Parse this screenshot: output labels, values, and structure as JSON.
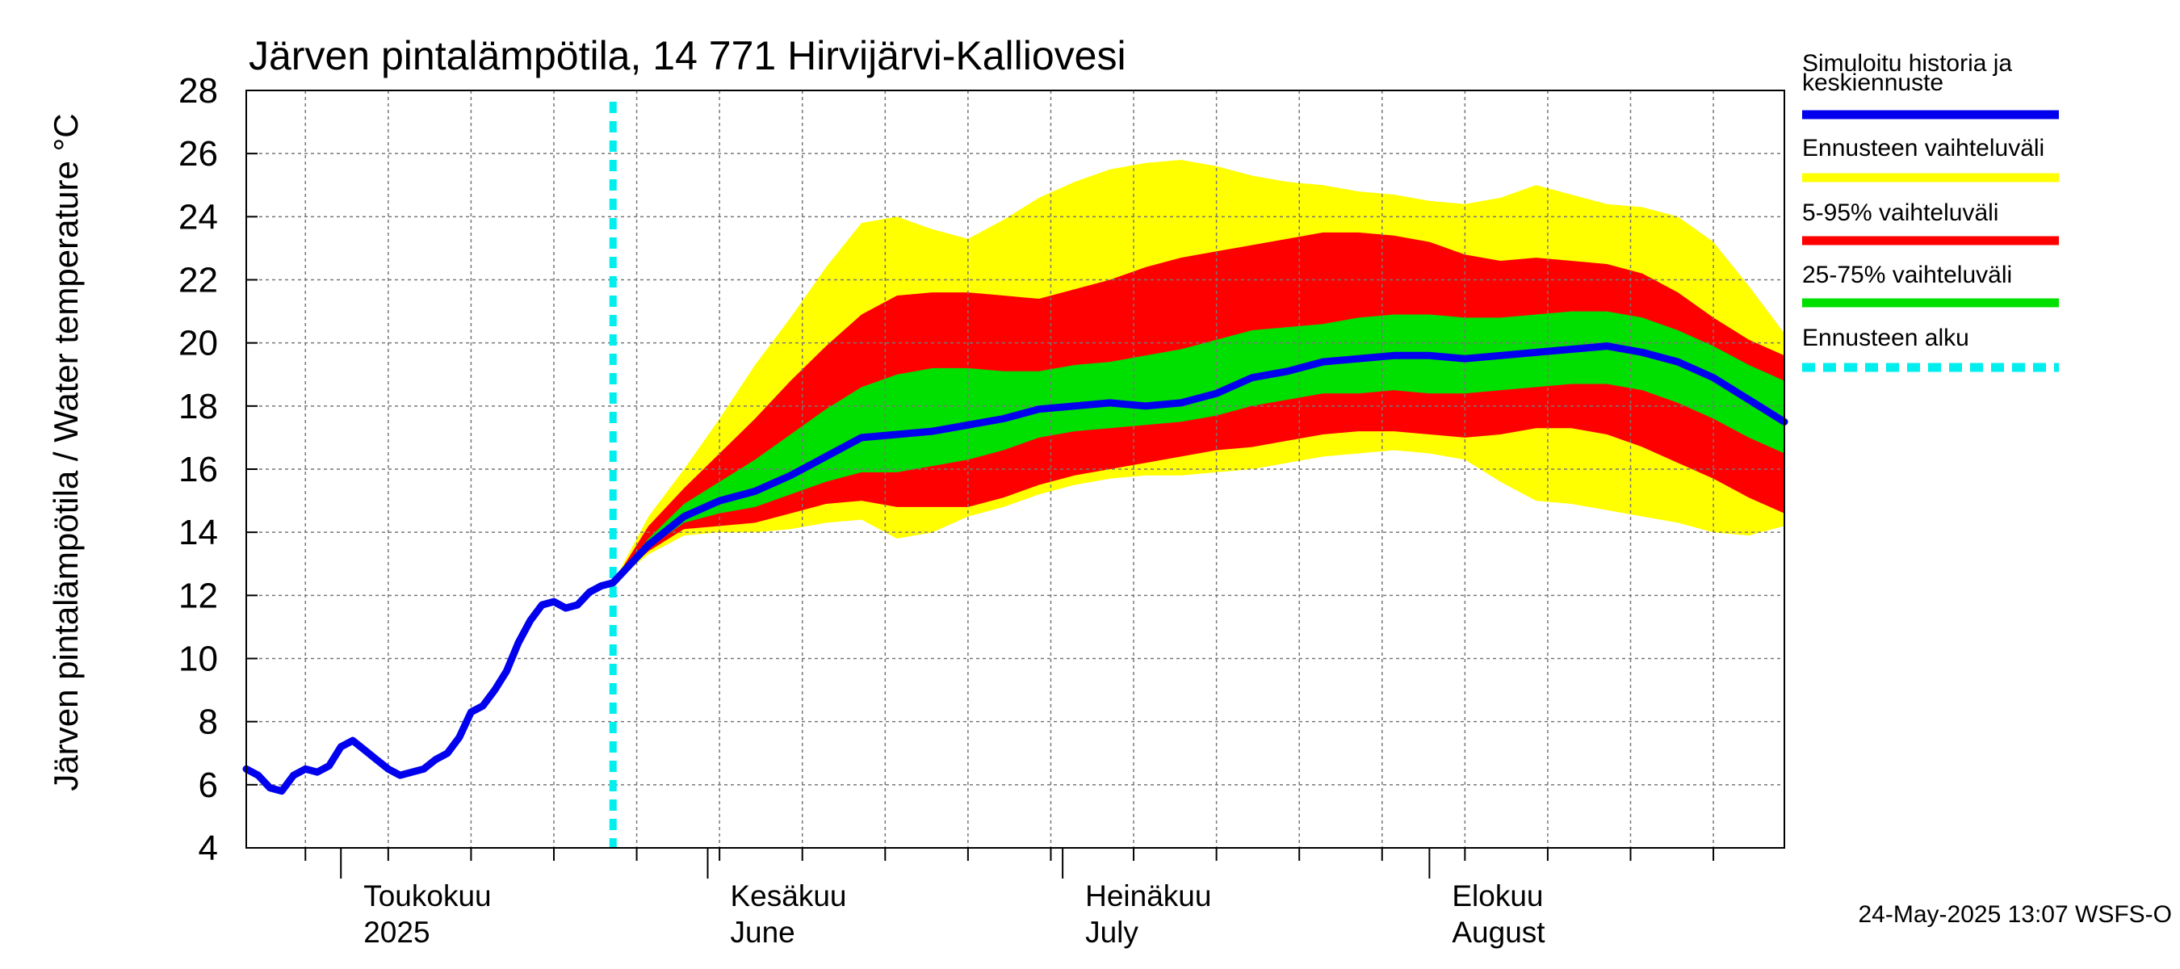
{
  "chart_data": {
    "type": "area",
    "title": "Järven pintalämpötila, 14 771 Hirvijärvi-Kalliovesi",
    "ylabel": "Järven pintalämpötila / Water temperature °C",
    "ylim": [
      4,
      28
    ],
    "yticks": [
      "4",
      "6",
      "8",
      "10",
      "12",
      "14",
      "16",
      "18",
      "20",
      "22",
      "24",
      "26",
      "28"
    ],
    "xlim": [
      "2025-04-23",
      "2025-08-31"
    ],
    "grid": true,
    "months": [
      {
        "date": "2025-05-01",
        "line1": "Toukokuu",
        "line2": "2025"
      },
      {
        "date": "2025-06-01",
        "line1": "Kesäkuu",
        "line2": "June"
      },
      {
        "date": "2025-07-01",
        "line1": "Heinäkuu",
        "line2": "July"
      },
      {
        "date": "2025-08-01",
        "line1": "Elokuu",
        "line2": "August"
      }
    ],
    "forecast_start": "2025-05-24",
    "colors": {
      "history": "#0000ee",
      "range_full": "#ffff00",
      "range_5_95": "#ff0000",
      "range_25_75": "#00e000",
      "forecast_start": "#00eeee"
    },
    "history": {
      "x": [
        "2025-04-23",
        "2025-04-24",
        "2025-04-25",
        "2025-04-26",
        "2025-04-27",
        "2025-04-28",
        "2025-04-29",
        "2025-04-30",
        "2025-05-01",
        "2025-05-02",
        "2025-05-03",
        "2025-05-04",
        "2025-05-05",
        "2025-05-06",
        "2025-05-07",
        "2025-05-08",
        "2025-05-09",
        "2025-05-10",
        "2025-05-11",
        "2025-05-12",
        "2025-05-13",
        "2025-05-14",
        "2025-05-15",
        "2025-05-16",
        "2025-05-17",
        "2025-05-18",
        "2025-05-19",
        "2025-05-20",
        "2025-05-21",
        "2025-05-22",
        "2025-05-23",
        "2025-05-24"
      ],
      "y": [
        6.5,
        6.3,
        5.9,
        5.8,
        6.3,
        6.5,
        6.4,
        6.6,
        7.2,
        7.4,
        7.1,
        6.8,
        6.5,
        6.3,
        6.4,
        6.5,
        6.8,
        7.0,
        7.5,
        8.3,
        8.5,
        9.0,
        9.6,
        10.5,
        11.2,
        11.7,
        11.8,
        11.6,
        11.7,
        12.1,
        12.3,
        12.4
      ]
    },
    "forecast": {
      "x": [
        "2025-05-24",
        "2025-05-27",
        "2025-05-30",
        "2025-06-02",
        "2025-06-05",
        "2025-06-08",
        "2025-06-11",
        "2025-06-14",
        "2025-06-17",
        "2025-06-20",
        "2025-06-23",
        "2025-06-26",
        "2025-06-29",
        "2025-07-02",
        "2025-07-05",
        "2025-07-08",
        "2025-07-11",
        "2025-07-14",
        "2025-07-17",
        "2025-07-20",
        "2025-07-23",
        "2025-07-26",
        "2025-07-29",
        "2025-08-01",
        "2025-08-04",
        "2025-08-07",
        "2025-08-10",
        "2025-08-13",
        "2025-08-16",
        "2025-08-19",
        "2025-08-22",
        "2025-08-25",
        "2025-08-28",
        "2025-08-31"
      ],
      "median": [
        12.4,
        13.6,
        14.5,
        15.0,
        15.3,
        15.8,
        16.4,
        17.0,
        17.1,
        17.2,
        17.4,
        17.6,
        17.9,
        18.0,
        18.1,
        18.0,
        18.1,
        18.4,
        18.9,
        19.1,
        19.4,
        19.5,
        19.6,
        19.6,
        19.5,
        19.6,
        19.7,
        19.8,
        19.9,
        19.7,
        19.4,
        18.9,
        18.2,
        17.5
      ],
      "p25": [
        12.4,
        13.5,
        14.3,
        14.6,
        14.8,
        15.2,
        15.6,
        15.9,
        15.9,
        16.1,
        16.3,
        16.6,
        17.0,
        17.2,
        17.3,
        17.4,
        17.5,
        17.7,
        18.0,
        18.2,
        18.4,
        18.4,
        18.5,
        18.4,
        18.4,
        18.5,
        18.6,
        18.7,
        18.7,
        18.5,
        18.1,
        17.6,
        17.0,
        16.5
      ],
      "p75": [
        12.4,
        13.8,
        14.9,
        15.6,
        16.3,
        17.1,
        17.9,
        18.6,
        19.0,
        19.2,
        19.2,
        19.1,
        19.1,
        19.3,
        19.4,
        19.6,
        19.8,
        20.1,
        20.4,
        20.5,
        20.6,
        20.8,
        20.9,
        20.9,
        20.8,
        20.8,
        20.9,
        21.0,
        21.0,
        20.8,
        20.4,
        19.9,
        19.3,
        18.8
      ],
      "p05": [
        12.4,
        13.4,
        14.1,
        14.2,
        14.3,
        14.6,
        14.9,
        15.0,
        14.8,
        14.8,
        14.8,
        15.1,
        15.5,
        15.8,
        16.0,
        16.2,
        16.4,
        16.6,
        16.7,
        16.9,
        17.1,
        17.2,
        17.2,
        17.1,
        17.0,
        17.1,
        17.3,
        17.3,
        17.1,
        16.7,
        16.2,
        15.7,
        15.1,
        14.6
      ],
      "p95": [
        12.4,
        14.2,
        15.4,
        16.5,
        17.6,
        18.8,
        19.9,
        20.9,
        21.5,
        21.6,
        21.6,
        21.5,
        21.4,
        21.7,
        22.0,
        22.4,
        22.7,
        22.9,
        23.1,
        23.3,
        23.5,
        23.5,
        23.4,
        23.2,
        22.8,
        22.6,
        22.7,
        22.6,
        22.5,
        22.2,
        21.6,
        20.8,
        20.1,
        19.6
      ],
      "min": [
        12.4,
        13.3,
        13.9,
        14.0,
        14.0,
        14.1,
        14.3,
        14.4,
        13.8,
        14.0,
        14.5,
        14.8,
        15.2,
        15.5,
        15.7,
        15.8,
        15.8,
        15.9,
        16.0,
        16.2,
        16.4,
        16.5,
        16.6,
        16.5,
        16.3,
        15.6,
        15.0,
        14.9,
        14.7,
        14.5,
        14.3,
        14.0,
        13.9,
        14.2
      ],
      "max": [
        12.4,
        14.5,
        16.0,
        17.6,
        19.3,
        20.8,
        22.4,
        23.8,
        24.0,
        23.6,
        23.3,
        23.9,
        24.6,
        25.1,
        25.5,
        25.7,
        25.8,
        25.6,
        25.3,
        25.1,
        25.0,
        24.8,
        24.7,
        24.5,
        24.4,
        24.6,
        25.0,
        24.7,
        24.4,
        24.3,
        24.0,
        23.2,
        21.8,
        20.3
      ]
    },
    "legend": [
      {
        "line1": "Simuloitu historia ja",
        "line2": "keskiennuste",
        "color": "#0000ee",
        "style": "solid"
      },
      {
        "line1": "Ennusteen vaihteluväli",
        "line2": "",
        "color": "#ffff00",
        "style": "solid"
      },
      {
        "line1": "5-95% vaihteluväli",
        "line2": "",
        "color": "#ff0000",
        "style": "solid"
      },
      {
        "line1": "25-75% vaihteluväli",
        "line2": "",
        "color": "#00e000",
        "style": "solid"
      },
      {
        "line1": "Ennusteen alku",
        "line2": "",
        "color": "#00eeee",
        "style": "dashed"
      }
    ],
    "legend_position": "right",
    "footer": "24-May-2025 13:07 WSFS-O"
  }
}
